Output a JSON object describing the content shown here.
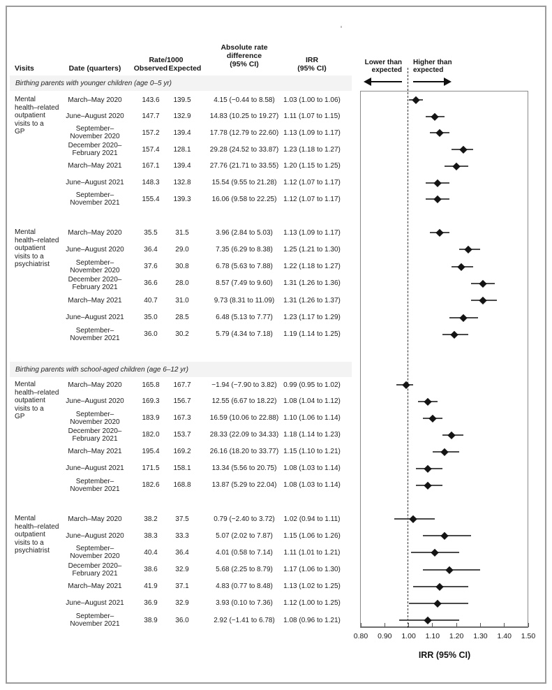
{
  "table": {
    "headers": {
      "visits": "Visits",
      "date": "Date (quarters)",
      "rate_group": "Rate/1000",
      "observed": "Observed",
      "expected": "Expected",
      "abs_diff": "Absolute rate\ndifference\n(95% CI)",
      "irr": "IRR\n(95% CI)"
    },
    "sections": [
      {
        "label": "Birthing parents with younger children (age 0–5 yr)",
        "groups": [
          {
            "visit_label": "Mental\nhealth–related\noutpatient\nvisits to a\nGP",
            "rows": [
              {
                "date": "March–May 2020",
                "observed": "143.6",
                "expected": "139.5",
                "abs": "4.15 (−0.44 to 8.58)",
                "irr": "1.03 (1.00 to 1.06)"
              },
              {
                "date": "June–August 2020",
                "observed": "147.7",
                "expected": "132.9",
                "abs": "14.83 (10.25 to 19.27)",
                "irr": "1.11 (1.07 to 1.15)"
              },
              {
                "date": "September–\nNovember 2020",
                "observed": "157.2",
                "expected": "139.4",
                "abs": "17.78 (12.79 to 22.60)",
                "irr": "1.13 (1.09 to 1.17)"
              },
              {
                "date": "December 2020–\nFebruary 2021",
                "observed": "157.4",
                "expected": "128.1",
                "abs": "29.28 (24.52 to 33.87)",
                "irr": "1.23 (1.18 to 1.27)"
              },
              {
                "date": "March–May 2021",
                "observed": "167.1",
                "expected": "139.4",
                "abs": "27.76 (21.71 to 33.55)",
                "irr": "1.20 (1.15 to 1.25)"
              },
              {
                "date": "June–August 2021",
                "observed": "148.3",
                "expected": "132.8",
                "abs": "15.54 (9.55 to 21.28)",
                "irr": "1.12 (1.07 to 1.17)"
              },
              {
                "date": "September–\nNovember 2021",
                "observed": "155.4",
                "expected": "139.3",
                "abs": "16.06 (9.58 to 22.25)",
                "irr": "1.12 (1.07 to 1.17)"
              }
            ]
          },
          {
            "visit_label": "Mental\nhealth–related\noutpatient\nvisits to a\npsychiatrist",
            "rows": [
              {
                "date": "March–May 2020",
                "observed": "35.5",
                "expected": "31.5",
                "abs": "3.96 (2.84 to 5.03)",
                "irr": "1.13 (1.09 to 1.17)"
              },
              {
                "date": "June–August 2020",
                "observed": "36.4",
                "expected": "29.0",
                "abs": "7.35 (6.29 to 8.38)",
                "irr": "1.25 (1.21 to 1.30)"
              },
              {
                "date": "September–\nNovember 2020",
                "observed": "37.6",
                "expected": "30.8",
                "abs": "6.78 (5.63 to 7.88)",
                "irr": "1.22 (1.18 to 1.27)"
              },
              {
                "date": "December 2020–\nFebruary 2021",
                "observed": "36.6",
                "expected": "28.0",
                "abs": "8.57 (7.49 to 9.60)",
                "irr": "1.31 (1.26 to 1.36)"
              },
              {
                "date": "March–May 2021",
                "observed": "40.7",
                "expected": "31.0",
                "abs": "9.73 (8.31 to 11.09)",
                "irr": "1.31 (1.26 to 1.37)"
              },
              {
                "date": "June–August 2021",
                "observed": "35.0",
                "expected": "28.5",
                "abs": "6.48 (5.13 to 7.77)",
                "irr": "1.23 (1.17 to 1.29)"
              },
              {
                "date": "September–\nNovember 2021",
                "observed": "36.0",
                "expected": "30.2",
                "abs": "5.79 (4.34 to 7.18)",
                "irr": "1.19 (1.14 to 1.25)"
              }
            ]
          }
        ]
      },
      {
        "label": "Birthing parents with school-aged children (age 6–12 yr)",
        "groups": [
          {
            "visit_label": "Mental\nhealth–related\noutpatient\nvisits to a\nGP",
            "rows": [
              {
                "date": "March–May 2020",
                "observed": "165.8",
                "expected": "167.7",
                "abs": "−1.94 (−7.90 to 3.82)",
                "irr": "0.99 (0.95 to 1.02)"
              },
              {
                "date": "June–August 2020",
                "observed": "169.3",
                "expected": "156.7",
                "abs": "12.55 (6.67 to 18.22)",
                "irr": "1.08 (1.04 to 1.12)"
              },
              {
                "date": "September–\nNovember 2020",
                "observed": "183.9",
                "expected": "167.3",
                "abs": "16.59 (10.06 to 22.88)",
                "irr": "1.10 (1.06 to 1.14)"
              },
              {
                "date": "December 2020–\nFebruary 2021",
                "observed": "182.0",
                "expected": "153.7",
                "abs": "28.33 (22.09 to 34.33)",
                "irr": "1.18 (1.14 to 1.23)"
              },
              {
                "date": "March–May 2021",
                "observed": "195.4",
                "expected": "169.2",
                "abs": "26.16 (18.20 to 33.77)",
                "irr": "1.15 (1.10 to 1.21)"
              },
              {
                "date": "June–August 2021",
                "observed": "171.5",
                "expected": "158.1",
                "abs": "13.34 (5.56 to 20.75)",
                "irr": "1.08 (1.03 to 1.14)"
              },
              {
                "date": "September–\nNovember 2021",
                "observed": "182.6",
                "expected": "168.8",
                "abs": "13.87 (5.29 to 22.04)",
                "irr": "1.08 (1.03 to 1.14)"
              }
            ]
          },
          {
            "visit_label": "Mental\nhealth–related\noutpatient\nvisits to a\npsychiatrist",
            "rows": [
              {
                "date": "March–May 2020",
                "observed": "38.2",
                "expected": "37.5",
                "abs": "0.79 (−2.40 to 3.72)",
                "irr": "1.02 (0.94 to 1.11)"
              },
              {
                "date": "June–August 2020",
                "observed": "38.3",
                "expected": "33.3",
                "abs": "5.07 (2.02 to 7.87)",
                "irr": "1.15 (1.06 to 1.26)"
              },
              {
                "date": "September–\nNovember 2020",
                "observed": "40.4",
                "expected": "36.4",
                "abs": "4.01 (0.58 to 7.14)",
                "irr": "1.11 (1.01 to 1.21)"
              },
              {
                "date": "December 2020–\nFebruary 2021",
                "observed": "38.6",
                "expected": "32.9",
                "abs": "5.68 (2.25 to 8.79)",
                "irr": "1.17 (1.06 to 1.30)"
              },
              {
                "date": "March–May 2021",
                "observed": "41.9",
                "expected": "37.1",
                "abs": "4.83 (0.77 to 8.48)",
                "irr": "1.13 (1.02 to 1.25)"
              },
              {
                "date": "June–August 2021",
                "observed": "36.9",
                "expected": "32.9",
                "abs": "3.93 (0.10 to 7.36)",
                "irr": "1.12 (1.00 to 1.25)"
              },
              {
                "date": "September–\nNovember 2021",
                "observed": "38.9",
                "expected": "36.0",
                "abs": "2.92 (−1.41 to 6.78)",
                "irr": "1.08 (0.96 to 1.21)"
              }
            ]
          }
        ]
      }
    ]
  },
  "plot": {
    "lower_label": "Lower than\nexpected",
    "higher_label": "Higher than\nexpected",
    "xlabel": "IRR (95% CI)",
    "marker_color": "#141414",
    "ci_color": "#4a4a4a",
    "reference_value": "1.00"
  },
  "chart_data": {
    "type": "scatter",
    "variant": "forest",
    "xlabel": "IRR (95% CI)",
    "xlim": [
      0.8,
      1.5
    ],
    "x_ticks": [
      "0.80",
      "0.90",
      "1.00",
      "1.10",
      "1.20",
      "1.30",
      "1.40",
      "1.50"
    ],
    "reference_line": 1.0,
    "annotations": [
      "Lower than expected",
      "Higher than expected"
    ],
    "categories": [
      "March–May 2020",
      "June–August 2020",
      "September–November 2020",
      "December 2020–February 2021",
      "March–May 2021",
      "June–August 2021",
      "September–November 2021"
    ],
    "series": [
      {
        "name": "Birthing parents with younger children (age 0–5 yr) — Mental health–related outpatient visits to a GP",
        "irr": [
          1.03,
          1.11,
          1.13,
          1.23,
          1.2,
          1.12,
          1.12
        ],
        "ci_low": [
          1.0,
          1.07,
          1.09,
          1.18,
          1.15,
          1.07,
          1.07
        ],
        "ci_high": [
          1.06,
          1.15,
          1.17,
          1.27,
          1.25,
          1.17,
          1.17
        ]
      },
      {
        "name": "Birthing parents with younger children (age 0–5 yr) — Mental health–related outpatient visits to a psychiatrist",
        "irr": [
          1.13,
          1.25,
          1.22,
          1.31,
          1.31,
          1.23,
          1.19
        ],
        "ci_low": [
          1.09,
          1.21,
          1.18,
          1.26,
          1.26,
          1.17,
          1.14
        ],
        "ci_high": [
          1.17,
          1.3,
          1.27,
          1.36,
          1.37,
          1.29,
          1.25
        ]
      },
      {
        "name": "Birthing parents with school-aged children (age 6–12 yr) — Mental health–related outpatient visits to a GP",
        "irr": [
          0.99,
          1.08,
          1.1,
          1.18,
          1.15,
          1.08,
          1.08
        ],
        "ci_low": [
          0.95,
          1.04,
          1.06,
          1.14,
          1.1,
          1.03,
          1.03
        ],
        "ci_high": [
          1.02,
          1.12,
          1.14,
          1.23,
          1.21,
          1.14,
          1.14
        ]
      },
      {
        "name": "Birthing parents with school-aged children (age 6–12 yr) — Mental health–related outpatient visits to a psychiatrist",
        "irr": [
          1.02,
          1.15,
          1.11,
          1.17,
          1.13,
          1.12,
          1.08
        ],
        "ci_low": [
          0.94,
          1.06,
          1.01,
          1.06,
          1.02,
          1.0,
          0.96
        ],
        "ci_high": [
          1.11,
          1.26,
          1.21,
          1.3,
          1.25,
          1.25,
          1.21
        ]
      }
    ]
  }
}
